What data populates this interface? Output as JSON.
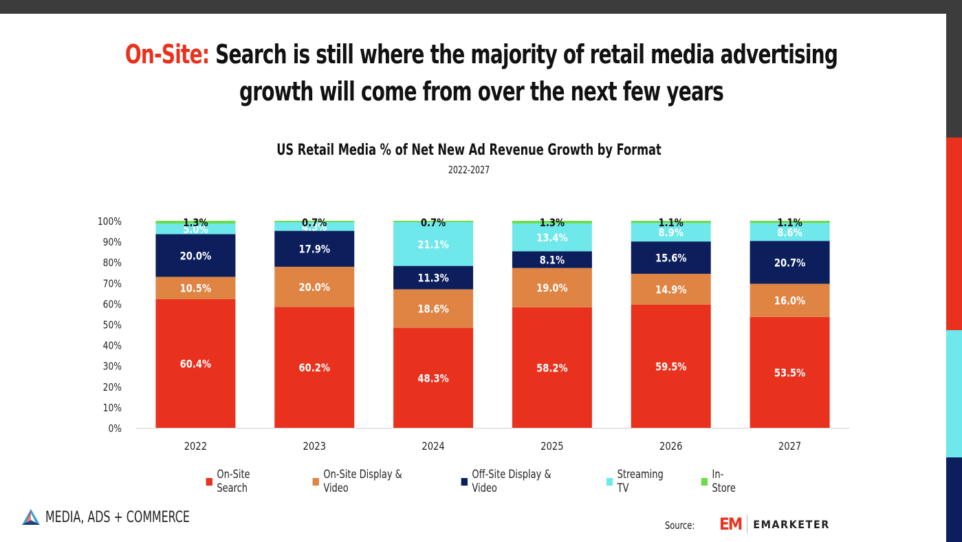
{
  "page": {
    "title_accent": "On-Site:",
    "title_rest": " Search is still where the majority of retail media advertising growth will come from over the next few years",
    "brand_label": "MEDIA, ADS + COMMERCE",
    "source_label": "Source:",
    "source_mark": "EM",
    "source_name": "EMARKETER",
    "sidebar_colors": [
      "#3c3c3c",
      "#e8321e",
      "#6ee8ea",
      "#0c1f5c"
    ]
  },
  "chart_data": {
    "type": "bar",
    "stacked": true,
    "title": "US Retail Media % of Net New Ad Revenue Growth by Format",
    "subtitle": "2022-2027",
    "xlabel": "",
    "ylabel": "",
    "ylim": [
      0,
      100
    ],
    "yticks": [
      "0%",
      "10%",
      "20%",
      "30%",
      "40%",
      "50%",
      "60%",
      "70%",
      "80%",
      "90%",
      "100%"
    ],
    "categories": [
      "2022",
      "2023",
      "2024",
      "2025",
      "2026",
      "2027"
    ],
    "legend_position": "bottom",
    "series": [
      {
        "name": "On-Site Search",
        "color": "#e8321e",
        "label_color": "#ffffff",
        "values": [
          60.4,
          60.2,
          48.3,
          58.2,
          59.5,
          53.5
        ]
      },
      {
        "name": "On-Site Display & Video",
        "color": "#e08444",
        "label_color": "#ffffff",
        "values": [
          10.5,
          20.0,
          18.6,
          19.0,
          14.9,
          16.0
        ]
      },
      {
        "name": "Off-Site Display & Video",
        "color": "#0c1f5c",
        "label_color": "#ffffff",
        "values": [
          20.0,
          17.9,
          11.3,
          8.1,
          15.6,
          20.7
        ]
      },
      {
        "name": "Streaming TV",
        "color": "#6ee8ea",
        "label_color": "#ffffff",
        "values": [
          5.0,
          4.3,
          21.1,
          13.4,
          8.9,
          8.6
        ]
      },
      {
        "name": "In-Store",
        "color": "#6cdc4c",
        "label_color": "#111111",
        "values": [
          1.3,
          0.7,
          0.7,
          1.3,
          1.1,
          1.1
        ]
      }
    ]
  }
}
